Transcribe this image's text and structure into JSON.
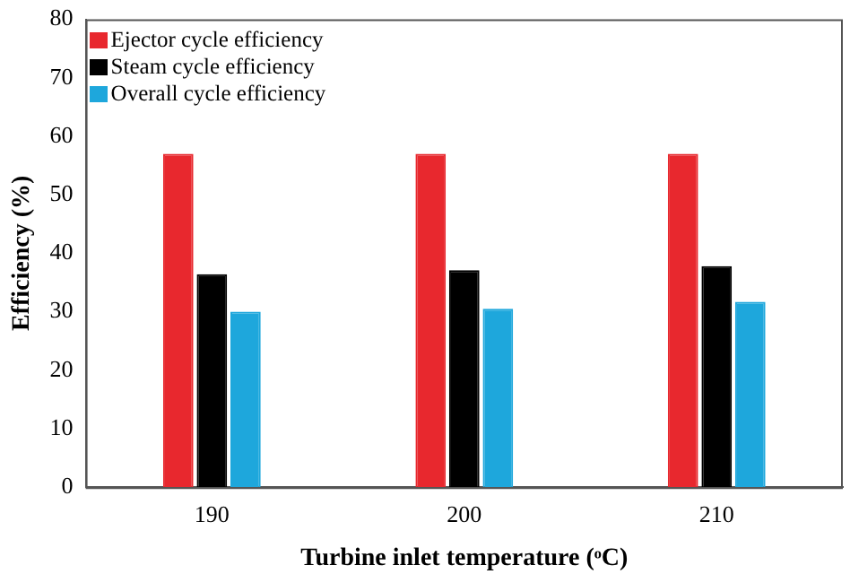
{
  "chart_data": {
    "type": "bar",
    "xlabel": "Turbine inlet temperature (ᵒC)",
    "ylabel": "Efficiency (%)",
    "categories": [
      "190",
      "200",
      "210"
    ],
    "series": [
      {
        "name": "Ejector cycle efficiency",
        "color": "#e8282e",
        "values": [
          57,
          57,
          57
        ]
      },
      {
        "name": "Steam cycle efficiency",
        "color": "#000000",
        "values": [
          36.4,
          37.1,
          37.8
        ]
      },
      {
        "name": "Overall cycle efficiency",
        "color": "#1ea7dc",
        "values": [
          30,
          30.5,
          31.7
        ]
      }
    ],
    "ylim": [
      0,
      80
    ],
    "yticks": [
      0,
      10,
      20,
      30,
      40,
      50,
      60,
      70,
      80
    ],
    "grid": false,
    "legend": "top left"
  }
}
